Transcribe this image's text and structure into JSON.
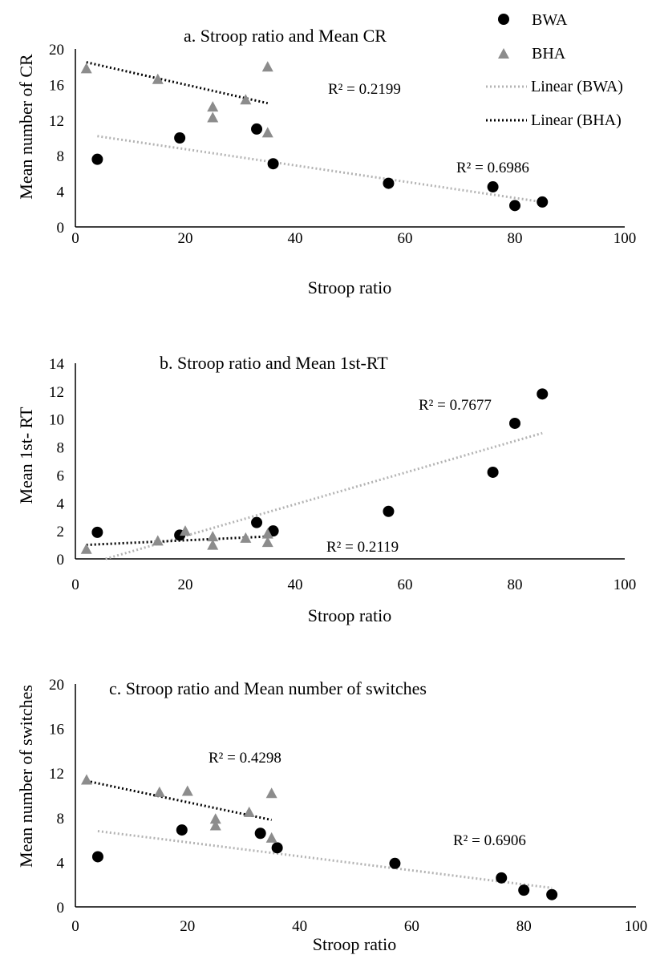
{
  "colors": {
    "bwa_marker": "#000000",
    "bha_marker": "#8c8c8c",
    "bwa_trend": "#b4b4b4",
    "bha_trend": "#000000",
    "axis": "#000000"
  },
  "legend": {
    "position": "top-right",
    "items": [
      {
        "label": "BWA",
        "marker": "circle",
        "color": "#000000"
      },
      {
        "label": "BHA",
        "marker": "triangle",
        "color": "#8c8c8c"
      },
      {
        "label": "Linear (BWA)",
        "marker": "dotted-line",
        "color": "#b4b4b4"
      },
      {
        "label": "Linear (BHA)",
        "marker": "dotted-line",
        "color": "#000000"
      }
    ]
  },
  "chart_data": [
    {
      "type": "scatter",
      "title": "a. Stroop ratio and Mean CR",
      "xlabel": "Stroop ratio",
      "ylabel": "Mean number of CR",
      "xlim": [
        0,
        100
      ],
      "ylim": [
        0,
        20
      ],
      "xticks": [
        0,
        20,
        40,
        60,
        80,
        100
      ],
      "yticks": [
        0,
        4,
        8,
        12,
        16,
        20
      ],
      "series": [
        {
          "name": "BWA",
          "marker": "circle",
          "color": "#000000",
          "points": [
            [
              4,
              7.6
            ],
            [
              19,
              10.0
            ],
            [
              33,
              11.0
            ],
            [
              36,
              7.1
            ],
            [
              57,
              4.9
            ],
            [
              76,
              4.5
            ],
            [
              80,
              2.4
            ],
            [
              85,
              2.8
            ]
          ]
        },
        {
          "name": "BHA",
          "marker": "triangle",
          "color": "#8c8c8c",
          "points": [
            [
              2,
              17.8
            ],
            [
              15,
              16.6
            ],
            [
              25,
              13.5
            ],
            [
              25,
              12.3
            ],
            [
              31,
              14.3
            ],
            [
              35,
              18.0
            ],
            [
              35,
              10.6
            ]
          ]
        }
      ],
      "trendlines": [
        {
          "name": "Linear (BWA)",
          "color": "#b4b4b4",
          "x": [
            4,
            85
          ],
          "y": [
            10.2,
            2.8
          ]
        },
        {
          "name": "Linear (BHA)",
          "color": "#000000",
          "x": [
            2,
            35
          ],
          "y": [
            18.5,
            13.9
          ]
        }
      ],
      "annotations": [
        "R² = 0.2199",
        "R² = 0.6986"
      ]
    },
    {
      "type": "scatter",
      "title": "b. Stroop ratio and Mean 1st-RT",
      "xlabel": "Stroop ratio",
      "ylabel": "Mean 1st- RT",
      "xlim": [
        0,
        100
      ],
      "ylim": [
        0,
        14
      ],
      "xticks": [
        0,
        20,
        40,
        60,
        80,
        100
      ],
      "yticks": [
        0,
        2,
        4,
        6,
        8,
        10,
        12,
        14
      ],
      "series": [
        {
          "name": "BWA",
          "marker": "circle",
          "color": "#000000",
          "points": [
            [
              4,
              1.9
            ],
            [
              19,
              1.7
            ],
            [
              33,
              2.6
            ],
            [
              36,
              2.0
            ],
            [
              57,
              3.4
            ],
            [
              76,
              6.2
            ],
            [
              80,
              9.7
            ],
            [
              85,
              11.8
            ]
          ]
        },
        {
          "name": "BHA",
          "marker": "triangle",
          "color": "#8c8c8c",
          "points": [
            [
              2,
              0.7
            ],
            [
              15,
              1.3
            ],
            [
              20,
              2.0
            ],
            [
              25,
              1.6
            ],
            [
              25,
              1.0
            ],
            [
              31,
              1.5
            ],
            [
              35,
              1.8
            ],
            [
              35,
              1.2
            ]
          ]
        }
      ],
      "trendlines": [
        {
          "name": "Linear (BWA)",
          "color": "#b4b4b4",
          "x": [
            5.5,
            85
          ],
          "y": [
            0,
            9.0
          ]
        },
        {
          "name": "Linear (BHA)",
          "color": "#000000",
          "x": [
            2,
            35
          ],
          "y": [
            1.0,
            1.6
          ]
        }
      ],
      "annotations": [
        "R² = 0.7677",
        "R² = 0.2119"
      ]
    },
    {
      "type": "scatter",
      "title": "c. Stroop ratio and Mean number of switches",
      "xlabel": "Stroop ratio",
      "ylabel": "Mean number of switches",
      "xlim": [
        0,
        100
      ],
      "ylim": [
        0,
        20
      ],
      "xticks": [
        0,
        20,
        40,
        60,
        80,
        100
      ],
      "yticks": [
        0,
        4,
        8,
        12,
        16,
        20
      ],
      "series": [
        {
          "name": "BWA",
          "marker": "circle",
          "color": "#000000",
          "points": [
            [
              4,
              4.5
            ],
            [
              19,
              6.9
            ],
            [
              33,
              6.6
            ],
            [
              36,
              5.3
            ],
            [
              57,
              3.9
            ],
            [
              76,
              2.6
            ],
            [
              80,
              1.5
            ],
            [
              85,
              1.1
            ]
          ]
        },
        {
          "name": "BHA",
          "marker": "triangle",
          "color": "#8c8c8c",
          "points": [
            [
              2,
              11.4
            ],
            [
              15,
              10.3
            ],
            [
              20,
              10.4
            ],
            [
              25,
              7.9
            ],
            [
              25,
              7.3
            ],
            [
              31,
              8.5
            ],
            [
              35,
              10.2
            ],
            [
              35,
              6.2
            ]
          ]
        }
      ],
      "trendlines": [
        {
          "name": "Linear (BWA)",
          "color": "#b4b4b4",
          "x": [
            4,
            85
          ],
          "y": [
            6.8,
            1.7
          ]
        },
        {
          "name": "Linear (BHA)",
          "color": "#000000",
          "x": [
            2,
            35
          ],
          "y": [
            11.3,
            7.8
          ]
        }
      ],
      "annotations": [
        "R² = 0.4298",
        "R² = 0.6906"
      ]
    }
  ]
}
